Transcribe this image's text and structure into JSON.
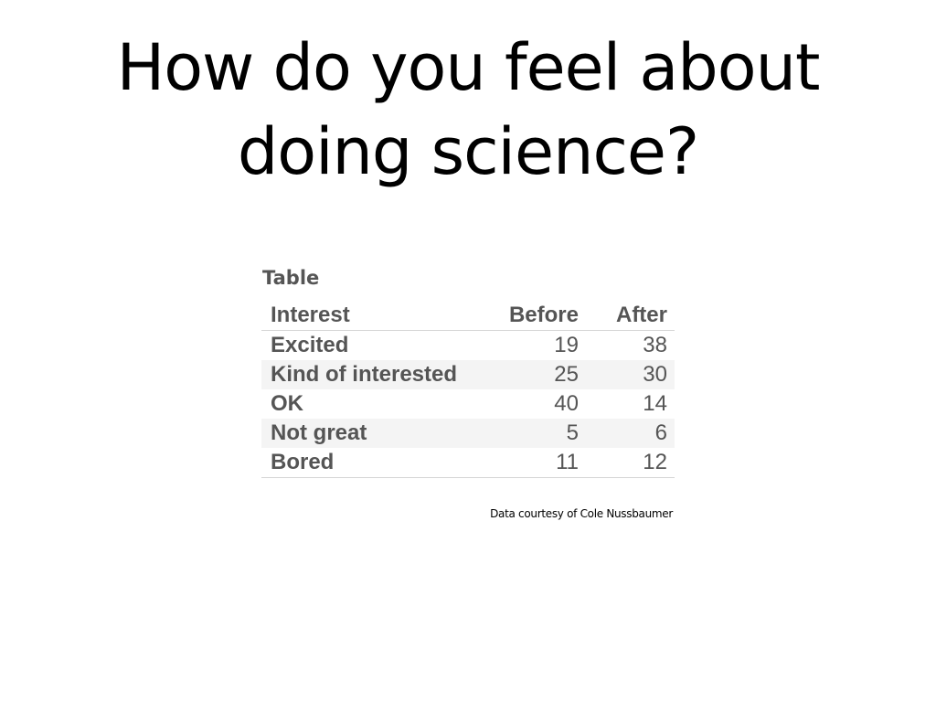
{
  "slide": {
    "title_line1": "How do you feel about",
    "title_line2": "doing science?"
  },
  "table": {
    "caption": "Table",
    "headers": [
      "Interest",
      "Before",
      "After"
    ],
    "rows": [
      {
        "label": "Excited",
        "before": "19",
        "after": "38"
      },
      {
        "label": "Kind of interested",
        "before": "25",
        "after": "30"
      },
      {
        "label": "OK",
        "before": "40",
        "after": "14"
      },
      {
        "label": "Not great",
        "before": "5",
        "after": "6"
      },
      {
        "label": "Bored",
        "before": "11",
        "after": "12"
      }
    ]
  },
  "credit": "Data courtesy of Cole Nussbaumer"
}
